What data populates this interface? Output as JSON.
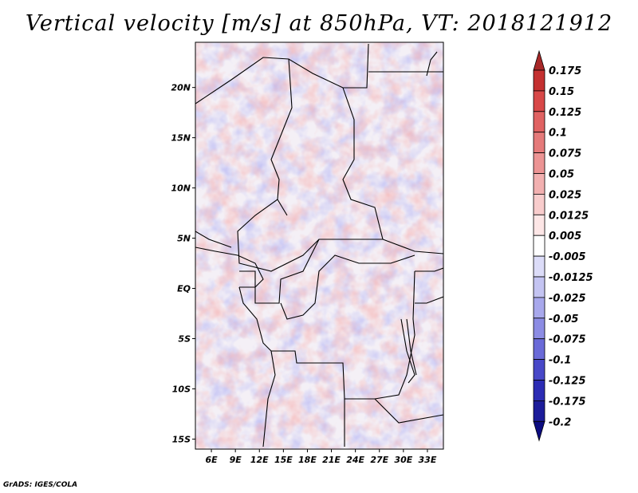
{
  "title": "Vertical velocity [m/s] at 850hPa, VT: 2018121912",
  "credit": "GrADS: IGES/COLA",
  "map": {
    "lon_ticks": [
      "6E",
      "9E",
      "12E",
      "15E",
      "18E",
      "21E",
      "24E",
      "27E",
      "30E",
      "33E"
    ],
    "lat_ticks": [
      "20N",
      "15N",
      "10N",
      "5N",
      "EQ",
      "5S",
      "10S",
      "15S"
    ],
    "lon_values": [
      6,
      9,
      12,
      15,
      18,
      21,
      24,
      27,
      30,
      33
    ],
    "lat_values": [
      20,
      15,
      10,
      5,
      0,
      -5,
      -10,
      -15
    ],
    "lon_range": [
      4,
      35
    ],
    "lat_range": [
      -16,
      24.5
    ],
    "field": "Vertical velocity (m/s), 850 hPa"
  },
  "colorbar": {
    "labels": [
      "0.175",
      "0.15",
      "0.125",
      "0.1",
      "0.075",
      "0.05",
      "0.025",
      "0.0125",
      "0.005",
      "-0.005",
      "-0.0125",
      "-0.025",
      "-0.05",
      "-0.075",
      "-0.1",
      "-0.125",
      "-0.175",
      "-0.2"
    ],
    "colors": [
      "#a82828",
      "#c43030",
      "#d84848",
      "#e06262",
      "#e57a7a",
      "#ec9494",
      "#f2b0b0",
      "#f8cccc",
      "#fde6e6",
      "#ffffff",
      "#dcdcf8",
      "#c4c4f2",
      "#a8a8ec",
      "#8c8ce4",
      "#6a6ad8",
      "#4848c8",
      "#2c2cb4",
      "#1c1c9a",
      "#0c0c80"
    ]
  }
}
